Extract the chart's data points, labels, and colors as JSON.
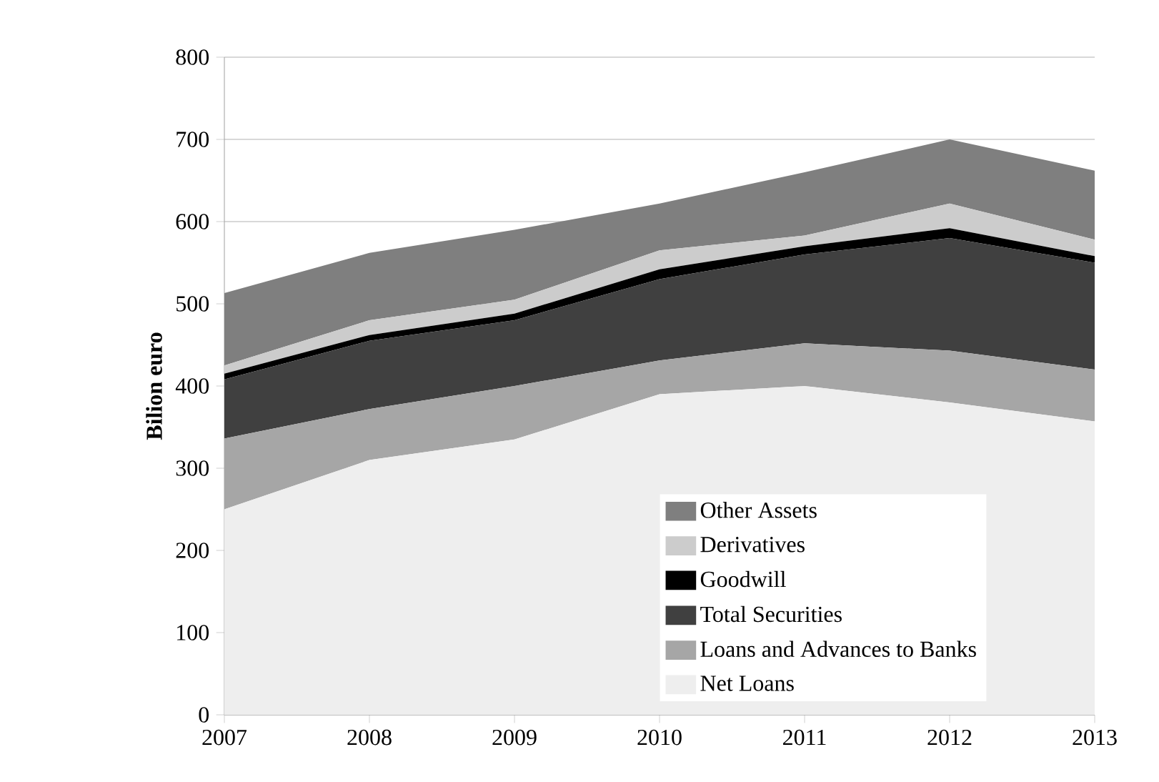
{
  "chart_data": {
    "type": "area",
    "stacked": true,
    "ylabel": "Bilion euro",
    "x": [
      2007,
      2008,
      2009,
      2010,
      2011,
      2012,
      2013
    ],
    "xlim": [
      2007,
      2013
    ],
    "xticks": [
      2007,
      2008,
      2009,
      2010,
      2011,
      2012,
      2013
    ],
    "ylim": [
      0,
      800
    ],
    "yticks": [
      0,
      100,
      200,
      300,
      400,
      500,
      600,
      700,
      800
    ],
    "grid": "y",
    "legend": "bottom",
    "series": [
      {
        "name": "Net Loans",
        "color": "#eeeeee",
        "values": [
          250,
          310,
          335,
          390,
          400,
          380,
          357
        ]
      },
      {
        "name": "Loans and Advances to Banks",
        "color": "#a6a6a6",
        "values": [
          86,
          62,
          65,
          41,
          52,
          63,
          63
        ]
      },
      {
        "name": "Total Securities",
        "color": "#404040",
        "values": [
          72,
          83,
          80,
          99,
          108,
          137,
          130
        ]
      },
      {
        "name": "Goodwill",
        "color": "#000000",
        "values": [
          7,
          7,
          8,
          12,
          10,
          12,
          8
        ]
      },
      {
        "name": "Derivatives",
        "color": "#cccccc",
        "values": [
          10,
          18,
          17,
          23,
          13,
          30,
          20
        ]
      },
      {
        "name": "Other Assets",
        "color": "#7f7f7f",
        "values": [
          88,
          82,
          85,
          57,
          77,
          78,
          84
        ]
      }
    ]
  }
}
